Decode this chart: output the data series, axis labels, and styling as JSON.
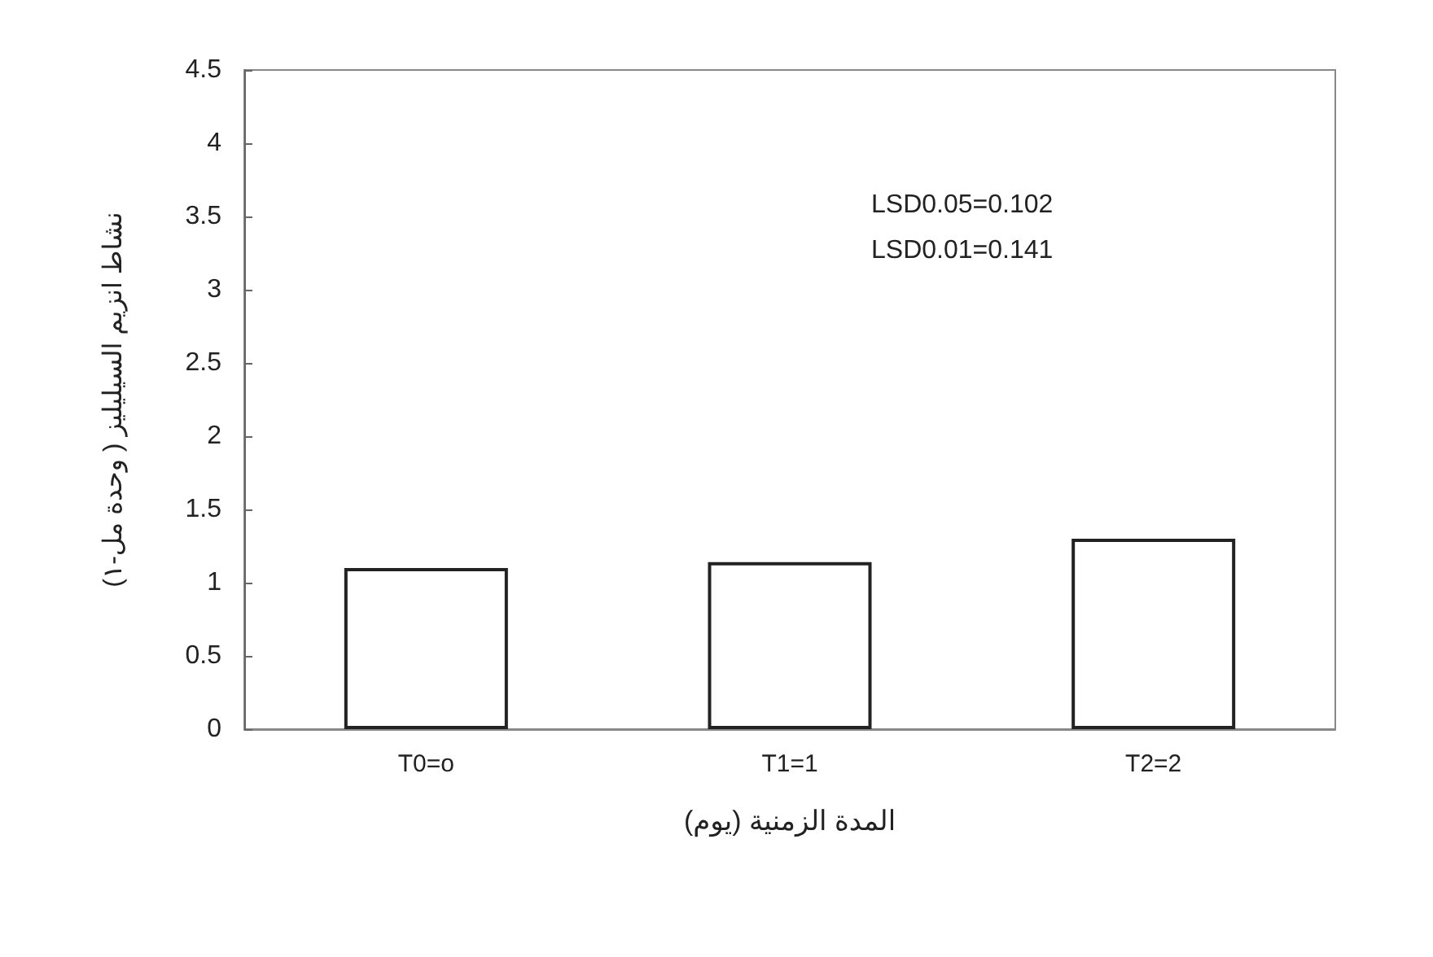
{
  "chart_data": {
    "type": "bar",
    "xlabel": "المدة الزمنية (يوم)",
    "ylabel": "نشاط انزيم السيليليز ( وحدة مل-١)",
    "categories": [
      "T0=o",
      "T1=1",
      "T2=2"
    ],
    "values": [
      1.1,
      1.14,
      1.3
    ],
    "color": "#ffffff",
    "ylim": [
      0,
      4.5
    ],
    "yticks": [
      0,
      0.5,
      1,
      1.5,
      2,
      2.5,
      3,
      3.5,
      4,
      4.5
    ],
    "grid": false,
    "annotations": [
      "LSD0.05=0.102",
      "LSD0.01=0.141"
    ]
  }
}
